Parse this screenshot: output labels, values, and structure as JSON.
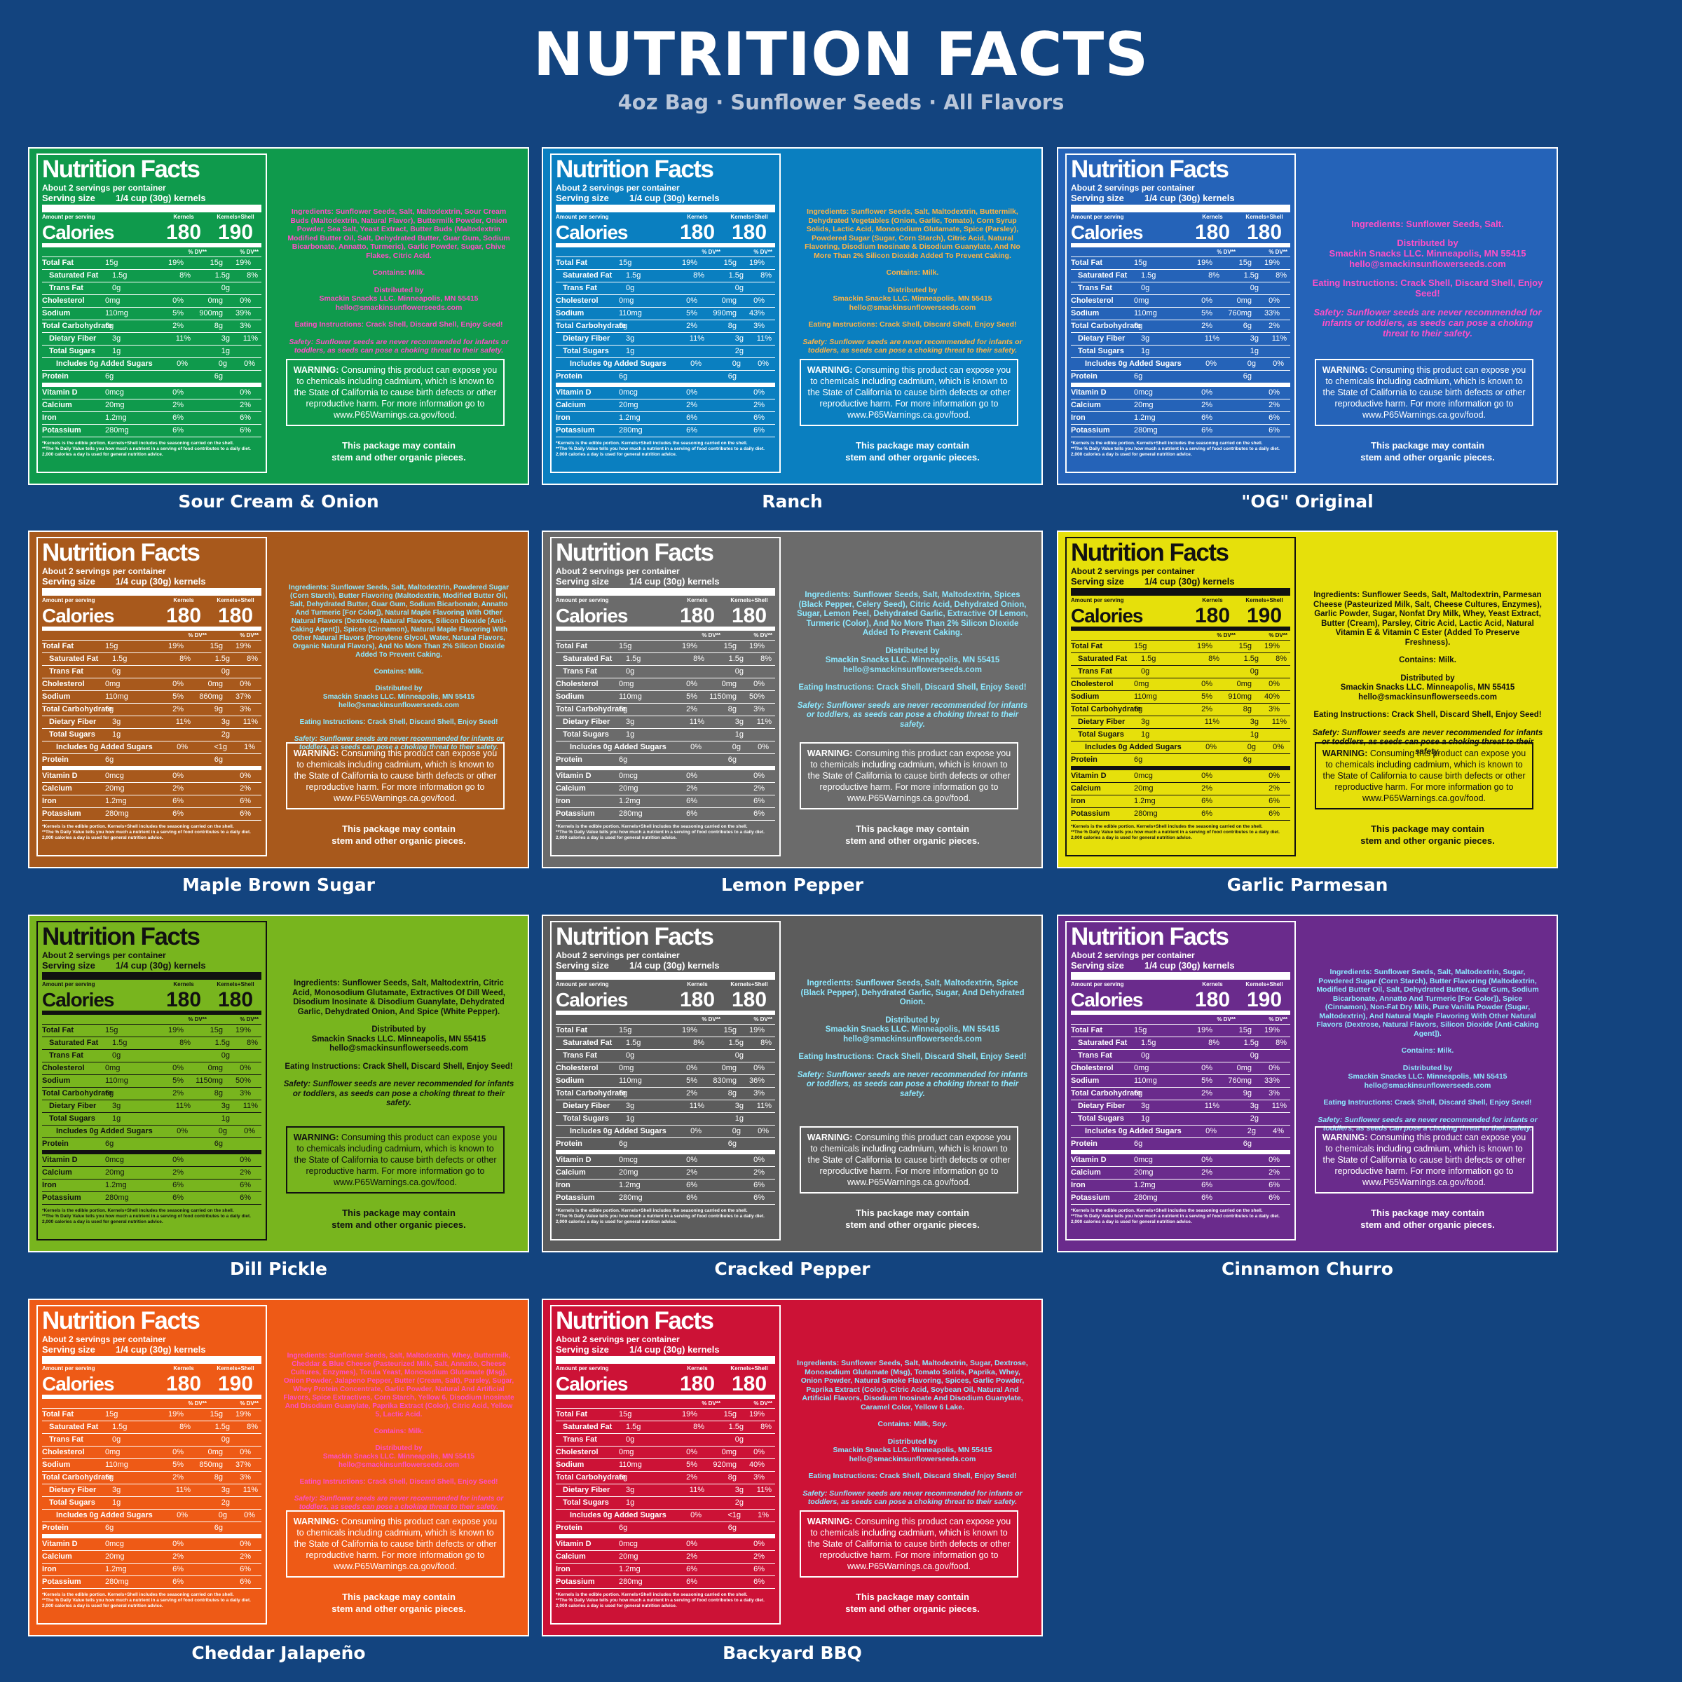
{
  "title": "NUTRITION FACTS",
  "subtitle": "4oz Bag · Sunflower Seeds · All Flavors",
  "common": {
    "nf_title": "Nutrition Facts",
    "servings": "About 2 servings per container",
    "serving_label": "Serving size",
    "serving_value": "1/4 cup (30g) kernels",
    "amount_per_serving": "Amount per serving",
    "col_kernels": "Kernels",
    "col_kernels_shell": "Kernels+Shell",
    "calories_label": "Calories",
    "dv_head": "% DV**",
    "footnote1": "*Kernels is the edible portion. Kernels+Shell includes the seasoning carried on the shell.",
    "footnote2": "**The % Daily Value tells you how much a nutrient in a serving of food contributes to a daily diet. 2,000 calories a day is used for general nutrition advice.",
    "distributed_by": "Distributed by",
    "company": "Smackin Snacks LLC. Minneapolis, MN 55415",
    "email": "hello@smackinsunflowerseeds.com",
    "eating": "Eating Instructions: Crack Shell, Discard Shell, Enjoy Seed!",
    "safety": "Safety: Sunflower seeds are never recommended for infants or toddlers, as seeds can pose a choking threat to their safety.",
    "warning_bold": "WARNING:",
    "warning_text": " Consuming this product can expose you to chemicals including cadmium, which is known to the State of California to cause birth defects or other reproductive harm. For more information go to www.P65Warnings.ca.gov/food.",
    "stem_line1": "This package may contain",
    "stem_line2": "stem and other organic pieces."
  },
  "flavors": [
    {
      "name": "Sour Cream & Onion",
      "bg": "#0f9a4c",
      "accent": "pink",
      "cal_k": "180",
      "cal_s": "190",
      "sodium_s": "900mg",
      "sodium_dv": "39%",
      "sugar_s": "1g",
      "added_s": "0g",
      "added_dv": "0%",
      "carb_s": "8g",
      "carb_dv": "3%",
      "contains": "Contains: Milk.",
      "ingredients": "Ingredients: Sunflower Seeds, Salt, Maltodextrin, Sour Cream Buds (Maltodextrin, Natural Flavor), Buttermilk Powder, Onion Powder, Sea Salt, Yeast Extract, Butter Buds (Maltodextrin Modified Butter Oil, Salt, Dehydrated Butter, Guar Gum, Sodium Bicarbonate, Annatto, Turmeric), Garlic Powder, Sugar, Chive Flakes, Citric Acid."
    },
    {
      "name": "Ranch",
      "bg": "#0a7fc0",
      "accent": "orange",
      "cal_k": "180",
      "cal_s": "180",
      "sodium_s": "990mg",
      "sodium_dv": "43%",
      "sugar_s": "2g",
      "added_s": "0g",
      "added_dv": "0%",
      "carb_s": "8g",
      "carb_dv": "3%",
      "contains": "Contains: Milk.",
      "ingredients": "Ingredients: Sunflower Seeds, Salt, Maltodextrin, Buttermilk, Dehydrated Vegetables (Onion, Garlic, Tomato), Corn Syrup Solids, Lactic Acid, Monosodium Glutamate, Spice (Parsley), Powdered Sugar (Sugar, Corn Starch), Citric Acid, Natural Flavoring, Disodium Inosinate & Disodium Guanylate, And No More Than 2% Silicon Dioxide Added To Prevent Caking."
    },
    {
      "name": "\"OG\" Original",
      "bg": "#2563b8",
      "accent": "pink",
      "cal_k": "180",
      "cal_s": "180",
      "sodium_s": "760mg",
      "sodium_dv": "33%",
      "sugar_s": "1g",
      "added_s": "0g",
      "added_dv": "0%",
      "carb_s": "6g",
      "carb_dv": "2%",
      "contains": "",
      "ingredients": "Ingredients: Sunflower Seeds, Salt."
    },
    {
      "name": "Maple Brown Sugar",
      "bg": "#a8591c",
      "accent": "cyan",
      "cal_k": "180",
      "cal_s": "180",
      "sodium_s": "860mg",
      "sodium_dv": "37%",
      "sugar_s": "2g",
      "added_s": "<1g",
      "added_dv": "1%",
      "carb_s": "9g",
      "carb_dv": "3%",
      "contains": "Contains: Milk.",
      "ingredients": "Ingredients: Sunflower Seeds, Salt, Maltodextrin, Powdered Sugar (Corn Starch), Butter Flavoring (Maltodextrin, Modified Butter Oil, Salt, Dehydrated Butter, Guar Gum, Sodium Bicarbonate, Annatto And Turmeric [For Color]), Natural Maple Flavoring With Other Natural Flavors (Dextrose, Natural Flavors, Silicon Dioxide [Anti-Caking Agent]), Spices (Cinnamon), Natural Maple Flavoring With Other Natural Flavors (Propylene Glycol, Water, Natural Flavors, Organic Natural Flavors), And No More Than 2% Silicon Dioxide Added To Prevent Caking."
    },
    {
      "name": "Lemon Pepper",
      "bg": "#6b6b6b",
      "accent": "cyan",
      "cal_k": "180",
      "cal_s": "180",
      "sodium_s": "1150mg",
      "sodium_dv": "50%",
      "sugar_s": "1g",
      "added_s": "0g",
      "added_dv": "0%",
      "carb_s": "8g",
      "carb_dv": "3%",
      "contains": "",
      "ingredients": "Ingredients: Sunflower Seeds, Salt, Maltodextrin, Spices (Black Pepper, Celery Seed), Citric Acid, Dehydrated Onion, Sugar, Lemon Peel, Dehydrated Garlic, Extractive Of Lemon, Turmeric (Color), And No More Than 2% Silicon Dioxide Added To Prevent Caking."
    },
    {
      "name": "Garlic Parmesan",
      "bg": "#e6e00b",
      "accent": "dark",
      "cal_k": "180",
      "cal_s": "190",
      "sodium_s": "910mg",
      "sodium_dv": "40%",
      "sugar_s": "1g",
      "added_s": "0g",
      "added_dv": "0%",
      "carb_s": "8g",
      "carb_dv": "3%",
      "contains": "Contains: Milk.",
      "ingredients": "Ingredients: Sunflower Seeds, Salt, Maltodextrin, Parmesan Cheese (Pasteurized Milk, Salt, Cheese Cultures, Enzymes), Garlic Powder, Sugar, Nonfat Dry Milk, Whey, Yeast Extract, Butter (Cream), Parsley, Citric Acid, Lactic Acid, Natural Vitamin E & Vitamin C Ester (Added To Preserve Freshness)."
    },
    {
      "name": "Dill Pickle",
      "bg": "#78b51e",
      "accent": "dark",
      "cal_k": "180",
      "cal_s": "180",
      "sodium_s": "1150mg",
      "sodium_dv": "50%",
      "sugar_s": "1g",
      "added_s": "0g",
      "added_dv": "0%",
      "carb_s": "8g",
      "carb_dv": "3%",
      "contains": "",
      "ingredients": "Ingredients: Sunflower Seeds, Salt, Maltodextrin, Citric Acid, Monosodium Glutamate, Extractives Of Dill Weed, Disodium Inosinate & Disodium Guanylate, Dehydrated Garlic, Dehydrated Onion, And Spice (White Pepper)."
    },
    {
      "name": "Cracked Pepper",
      "bg": "#5c5c5c",
      "accent": "cyan",
      "cal_k": "180",
      "cal_s": "180",
      "sodium_s": "830mg",
      "sodium_dv": "36%",
      "sugar_s": "1g",
      "added_s": "0g",
      "added_dv": "0%",
      "carb_s": "8g",
      "carb_dv": "3%",
      "contains": "",
      "ingredients": "Ingredients: Sunflower Seeds, Salt, Maltodextrin, Spice (Black Pepper), Dehydrated Garlic, Sugar, And Dehydrated Onion."
    },
    {
      "name": "Cinnamon Churro",
      "bg": "#6a2b8c",
      "accent": "cyan",
      "cal_k": "180",
      "cal_s": "190",
      "sodium_s": "760mg",
      "sodium_dv": "33%",
      "sugar_s": "2g",
      "added_s": "2g",
      "added_dv": "4%",
      "carb_s": "9g",
      "carb_dv": "3%",
      "contains": "Contains: Milk.",
      "ingredients": "Ingredients: Sunflower Seeds, Salt, Maltodextrin, Sugar, Powdered Sugar (Corn Starch), Butter Flavoring (Maltodextrin, Modified Butter Oil, Salt, Dehydrated Butter, Guar Gum, Sodium Bicarbonate, Annatto And Turmeric [For Color]), Spice (Cinnamon), Non-Fat Dry Milk, Pure Vanilla Powder (Sugar, Maltodextrin), And Natural Maple Flavoring With Other Natural Flavors (Dextrose, Natural Flavors, Silicon Dioxide [Anti-Caking Agent])."
    },
    {
      "name": "Cheddar Jalapeño",
      "bg": "#ee5a16",
      "accent": "pink",
      "cal_k": "180",
      "cal_s": "190",
      "sodium_s": "850mg",
      "sodium_dv": "37%",
      "sugar_s": "2g",
      "added_s": "0g",
      "added_dv": "0%",
      "carb_s": "8g",
      "carb_dv": "3%",
      "contains": "Contains: Milk.",
      "ingredients": "Ingredients: Sunflower Seeds, Salt, Maltodextrin, Whey, Buttermilk, Cheddar & Blue Cheese (Pasteurized Milk, Salt, Annatto, Cheese Cultures, Enzymes), Torula Yeast, Monosodium Glutamate (Msg), Onion Powder, Jalapeno Pepper, Butter (Cream, Salt), Parsley, Sugar, Whey Protein Concentrate, Garlic Powder, Natural And Artificial Flavors, Spice Extractives, Corn Starch, Yellow 6, Disodium Inosinate And Disodium Guanylate, Paprika Extract (Color), Citric Acid, Yellow 5, Lactic Acid."
    },
    {
      "name": "Backyard BBQ",
      "bg": "#cc1236",
      "accent": "cyan",
      "cal_k": "180",
      "cal_s": "180",
      "sodium_s": "920mg",
      "sodium_dv": "40%",
      "sugar_s": "2g",
      "added_s": "<1g",
      "added_dv": "1%",
      "carb_s": "8g",
      "carb_dv": "3%",
      "contains": "Contains: Milk, Soy.",
      "ingredients": "Ingredients: Sunflower Seeds, Salt, Maltodextrin, Sugar, Dextrose, Monosodium Glutamate (Msg), Tomato Solids, Paprika, Whey, Onion Powder, Natural Smoke Flavoring, Spices, Garlic Powder, Paprika Extract (Color), Citric Acid, Soybean Oil, Natural And Artificial Flavors, Disodium Inosinate And Disodium Guanylate, Caramel Color, Yellow 6 Lake."
    }
  ],
  "rows": {
    "total_fat": [
      "Total Fat",
      "15g",
      "19%",
      "15g",
      "19%"
    ],
    "sat_fat": [
      "Saturated Fat",
      "1.5g",
      "8%",
      "1.5g",
      "8%"
    ],
    "trans_fat": [
      "Trans Fat",
      "0g",
      "",
      "0g",
      ""
    ],
    "cholesterol": [
      "Cholesterol",
      "0mg",
      "0%",
      "0mg",
      "0%"
    ],
    "sodium": [
      "Sodium",
      "110mg",
      "5%"
    ],
    "total_carb": [
      "Total Carbohydrate",
      "6g",
      "2%"
    ],
    "fiber": [
      "Dietary Fiber",
      "3g",
      "11%",
      "3g",
      "11%"
    ],
    "total_sugars": [
      "Total Sugars",
      "1g",
      ""
    ],
    "added_sugars": [
      "Includes 0g Added Sugars",
      "0%"
    ],
    "protein": [
      "Protein",
      "6g",
      "",
      "6g",
      ""
    ],
    "vit_d": [
      "Vitamin D",
      "0mcg",
      "0%",
      "",
      "0%"
    ],
    "calcium": [
      "Calcium",
      "20mg",
      "2%",
      "",
      "2%"
    ],
    "iron": [
      "Iron",
      "1.2mg",
      "6%",
      "",
      "6%"
    ],
    "potassium": [
      "Potassium",
      "280mg",
      "6%",
      "",
      "6%"
    ]
  }
}
